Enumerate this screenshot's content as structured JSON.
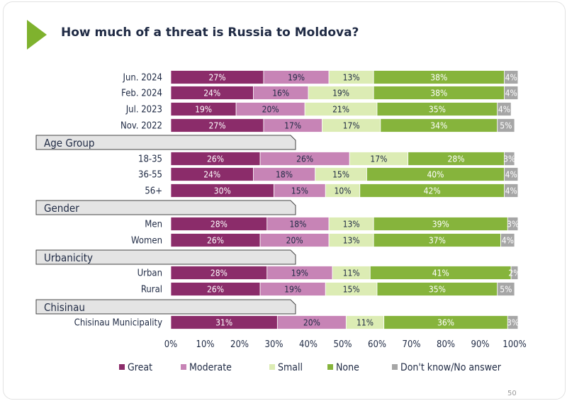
{
  "header": {
    "title": "How much of a threat is Russia to Moldova?",
    "page_number": "50"
  },
  "chart_data": {
    "type": "bar",
    "orientation": "horizontal-stacked-percent",
    "series": [
      {
        "name": "Great",
        "color": "#8b2c6a"
      },
      {
        "name": "Moderate",
        "color": "#c784b6"
      },
      {
        "name": "Small",
        "color": "#dcecb4"
      },
      {
        "name": "None",
        "color": "#86b43c"
      },
      {
        "name": "Don't know/No answer",
        "color": "#a6a6a6"
      }
    ],
    "groups": [
      {
        "label": "",
        "rows": [
          {
            "label": "Jun. 2024",
            "values": [
              27,
              19,
              13,
              38,
              4
            ]
          },
          {
            "label": "Feb. 2024",
            "values": [
              24,
              16,
              19,
              38,
              4
            ]
          },
          {
            "label": "Jul. 2023",
            "values": [
              19,
              20,
              21,
              35,
              4
            ]
          },
          {
            "label": "Nov. 2022",
            "values": [
              27,
              17,
              17,
              34,
              5
            ]
          }
        ]
      },
      {
        "label": "Age Group",
        "rows": [
          {
            "label": "18-35",
            "values": [
              26,
              26,
              17,
              28,
              3
            ]
          },
          {
            "label": "36-55",
            "values": [
              24,
              18,
              15,
              40,
              4
            ]
          },
          {
            "label": "56+",
            "values": [
              30,
              15,
              10,
              42,
              4
            ]
          }
        ]
      },
      {
        "label": "Gender",
        "rows": [
          {
            "label": "Men",
            "values": [
              28,
              18,
              13,
              39,
              3
            ]
          },
          {
            "label": "Women",
            "values": [
              26,
              20,
              13,
              37,
              4
            ]
          }
        ]
      },
      {
        "label": "Urbanicity",
        "rows": [
          {
            "label": "Urban",
            "values": [
              28,
              19,
              11,
              41,
              2
            ]
          },
          {
            "label": "Rural",
            "values": [
              26,
              19,
              15,
              35,
              5
            ]
          }
        ]
      },
      {
        "label": "Chisinau",
        "rows": [
          {
            "label": "Chisinau Municipality",
            "values": [
              31,
              20,
              11,
              36,
              3
            ]
          }
        ]
      }
    ],
    "x_ticks": [
      "0%",
      "10%",
      "20%",
      "30%",
      "40%",
      "50%",
      "60%",
      "70%",
      "80%",
      "90%",
      "100%"
    ],
    "xlim": [
      0,
      100
    ],
    "grid": false,
    "legend_position": "bottom"
  }
}
